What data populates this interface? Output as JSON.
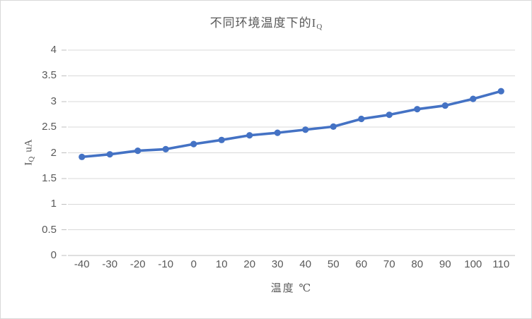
{
  "chart": {
    "title": {
      "main": "不同环境温度下的I",
      "sub": "Q"
    },
    "y_axis": {
      "title_main": "I",
      "title_sub": "Q",
      "title_unit": "uA"
    },
    "x_axis": {
      "title": "温度 ℃"
    }
  },
  "chart_data": {
    "type": "line",
    "title": "不同环境温度下的IQ",
    "xlabel": "温度 ℃",
    "ylabel": "IQ uA",
    "categories": [
      -40,
      -30,
      -20,
      -10,
      0,
      10,
      20,
      30,
      40,
      50,
      60,
      70,
      80,
      90,
      100,
      110
    ],
    "series": [
      {
        "name": "IQ",
        "values": [
          1.92,
          1.97,
          2.04,
          2.07,
          2.17,
          2.25,
          2.34,
          2.39,
          2.45,
          2.51,
          2.66,
          2.74,
          2.85,
          2.92,
          3.05,
          3.2
        ]
      }
    ],
    "ylim": [
      0,
      4
    ],
    "y_ticks": [
      "0",
      "0.5",
      "1",
      "1.5",
      "2",
      "2.5",
      "3",
      "3.5",
      "4"
    ],
    "grid": "horizontal",
    "legend": "none",
    "series_color": "#4472C4",
    "gridline_color": "#D9D9D9",
    "axis_color": "#BFBFBF",
    "text_color": "#595959",
    "marker": "circle"
  }
}
